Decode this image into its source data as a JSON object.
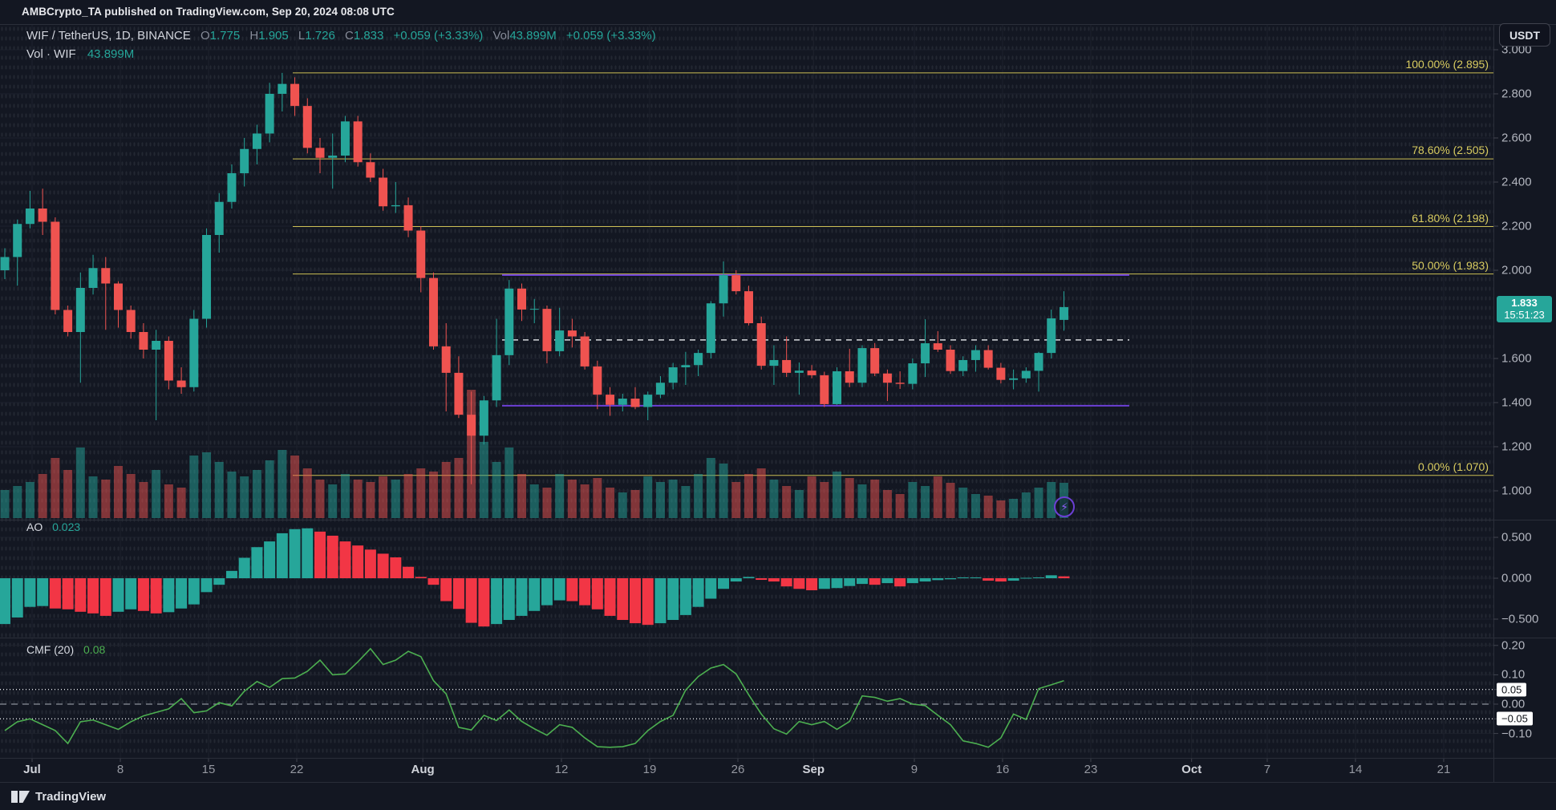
{
  "attribution": "AMBCrypto_TA published on TradingView.com, Sep 20, 2024 08:08 UTC",
  "toolbar": {
    "symbol_currency_button": "USDT"
  },
  "legend": {
    "symbol": "WIF / TetherUS, 1D, BINANCE",
    "o_label": "O",
    "o_value": "1.775",
    "h_label": "H",
    "h_value": "1.905",
    "l_label": "L",
    "l_value": "1.726",
    "c_label": "C",
    "c_value": "1.833",
    "change": "+0.059 (+3.33%)",
    "vol_label": "Vol",
    "vol_value": "43.899M",
    "vol_change": "+0.059 (+3.33%)",
    "row2_label": "Vol · WIF",
    "row2_value": "43.899M"
  },
  "panes": {
    "ao": {
      "label": "AO",
      "value": "0.023"
    },
    "cmf": {
      "label": "CMF (20)",
      "value": "0.08"
    }
  },
  "price_badge": {
    "price": "1.833",
    "countdown": "15:51:23"
  },
  "footer": {
    "brand": "TradingView"
  },
  "colors": {
    "up": "#26a69a",
    "down": "#ef5350",
    "ao_up": "#26a69a",
    "ao_down": "#f23645",
    "cmf_line": "#4caf50",
    "fib": "#d9cc60",
    "fib_line": "#cdbf55",
    "purple_line": "#6b3fd4",
    "dashed_line": "#d8dade",
    "grid": "#1e222d",
    "separator": "#2a2e39",
    "tick": "#40434e",
    "axis_text": "#b2b5be",
    "badge_bg": "#26a69a"
  },
  "chart_data": {
    "type": "candlestick",
    "title": "WIF / TetherUS, 1D, BINANCE",
    "legend_last": {
      "open": 1.775,
      "high": 1.905,
      "low": 1.726,
      "close": 1.833,
      "change": "+0.059 (+3.33%)",
      "volume": "43.899M"
    },
    "price_range_visible": [
      0.87,
      3.12
    ],
    "grid": "dotted",
    "candles": [
      [
        2.0,
        2.1,
        1.96,
        2.06
      ],
      [
        2.06,
        2.23,
        1.93,
        2.21
      ],
      [
        2.21,
        2.36,
        2.19,
        2.28
      ],
      [
        2.28,
        2.37,
        2.16,
        2.22
      ],
      [
        2.22,
        2.24,
        1.8,
        1.82
      ],
      [
        1.82,
        1.84,
        1.7,
        1.72
      ],
      [
        1.72,
        1.99,
        1.49,
        1.92
      ],
      [
        1.92,
        2.07,
        1.89,
        2.01
      ],
      [
        2.01,
        2.06,
        1.73,
        1.94
      ],
      [
        1.94,
        1.95,
        1.74,
        1.82
      ],
      [
        1.82,
        1.84,
        1.69,
        1.72
      ],
      [
        1.72,
        1.76,
        1.6,
        1.64
      ],
      [
        1.64,
        1.73,
        1.32,
        1.68
      ],
      [
        1.68,
        1.7,
        1.46,
        1.5
      ],
      [
        1.5,
        1.56,
        1.44,
        1.47
      ],
      [
        1.47,
        1.82,
        1.45,
        1.78
      ],
      [
        1.78,
        2.19,
        1.74,
        2.16
      ],
      [
        2.16,
        2.35,
        2.08,
        2.31
      ],
      [
        2.31,
        2.48,
        2.28,
        2.44
      ],
      [
        2.44,
        2.6,
        2.38,
        2.55
      ],
      [
        2.55,
        2.66,
        2.48,
        2.62
      ],
      [
        2.62,
        2.85,
        2.58,
        2.8
      ],
      [
        2.8,
        2.895,
        2.72,
        2.845
      ],
      [
        2.845,
        2.875,
        2.7,
        2.745
      ],
      [
        2.745,
        2.78,
        2.53,
        2.555
      ],
      [
        2.555,
        2.6,
        2.44,
        2.51
      ],
      [
        2.51,
        2.62,
        2.37,
        2.52
      ],
      [
        2.52,
        2.7,
        2.49,
        2.675
      ],
      [
        2.675,
        2.7,
        2.47,
        2.49
      ],
      [
        2.49,
        2.53,
        2.4,
        2.42
      ],
      [
        2.42,
        2.46,
        2.27,
        2.29
      ],
      [
        2.29,
        2.4,
        2.26,
        2.295
      ],
      [
        2.295,
        2.33,
        2.15,
        2.18
      ],
      [
        2.18,
        2.2,
        1.9,
        1.965
      ],
      [
        1.965,
        1.99,
        1.64,
        1.655
      ],
      [
        1.655,
        1.76,
        1.36,
        1.535
      ],
      [
        1.535,
        1.61,
        1.33,
        1.345
      ],
      [
        1.345,
        1.45,
        1.03,
        1.25
      ],
      [
        1.25,
        1.43,
        1.21,
        1.41
      ],
      [
        1.41,
        1.78,
        1.38,
        1.615
      ],
      [
        1.615,
        1.956,
        1.57,
        1.917
      ],
      [
        1.917,
        1.94,
        1.77,
        1.822
      ],
      [
        1.822,
        1.87,
        1.76,
        1.825
      ],
      [
        1.825,
        1.84,
        1.578,
        1.633
      ],
      [
        1.633,
        1.83,
        1.61,
        1.727
      ],
      [
        1.727,
        1.78,
        1.65,
        1.7
      ],
      [
        1.7,
        1.72,
        1.55,
        1.564
      ],
      [
        1.564,
        1.59,
        1.37,
        1.436
      ],
      [
        1.436,
        1.47,
        1.34,
        1.39
      ],
      [
        1.39,
        1.44,
        1.36,
        1.418
      ],
      [
        1.418,
        1.47,
        1.37,
        1.38
      ],
      [
        1.38,
        1.45,
        1.32,
        1.436
      ],
      [
        1.436,
        1.52,
        1.42,
        1.49
      ],
      [
        1.49,
        1.58,
        1.46,
        1.56
      ],
      [
        1.56,
        1.63,
        1.48,
        1.57
      ],
      [
        1.57,
        1.64,
        1.52,
        1.625
      ],
      [
        1.625,
        1.86,
        1.6,
        1.85
      ],
      [
        1.85,
        2.04,
        1.79,
        1.978
      ],
      [
        1.978,
        2.0,
        1.89,
        1.905
      ],
      [
        1.905,
        1.93,
        1.75,
        1.76
      ],
      [
        1.76,
        1.79,
        1.55,
        1.567
      ],
      [
        1.567,
        1.66,
        1.48,
        1.593
      ],
      [
        1.593,
        1.7,
        1.516,
        1.535
      ],
      [
        1.535,
        1.582,
        1.436,
        1.545
      ],
      [
        1.545,
        1.57,
        1.51,
        1.524
      ],
      [
        1.524,
        1.54,
        1.38,
        1.393
      ],
      [
        1.393,
        1.56,
        1.39,
        1.542
      ],
      [
        1.542,
        1.644,
        1.47,
        1.49
      ],
      [
        1.49,
        1.66,
        1.47,
        1.647
      ],
      [
        1.647,
        1.67,
        1.52,
        1.532
      ],
      [
        1.532,
        1.55,
        1.407,
        1.49
      ],
      [
        1.49,
        1.542,
        1.462,
        1.485
      ],
      [
        1.485,
        1.6,
        1.46,
        1.578
      ],
      [
        1.578,
        1.778,
        1.516,
        1.669
      ],
      [
        1.669,
        1.724,
        1.63,
        1.64
      ],
      [
        1.64,
        1.66,
        1.53,
        1.543
      ],
      [
        1.543,
        1.61,
        1.52,
        1.593
      ],
      [
        1.593,
        1.66,
        1.54,
        1.638
      ],
      [
        1.638,
        1.66,
        1.55,
        1.558
      ],
      [
        1.558,
        1.58,
        1.487,
        1.503
      ],
      [
        1.503,
        1.55,
        1.46,
        1.51
      ],
      [
        1.51,
        1.56,
        1.49,
        1.544
      ],
      [
        1.544,
        1.63,
        1.45,
        1.625
      ],
      [
        1.625,
        1.822,
        1.6,
        1.782
      ],
      [
        1.775,
        1.905,
        1.726,
        1.833
      ]
    ],
    "volume_m": [
      35,
      40,
      45,
      55,
      75,
      60,
      88,
      52,
      48,
      65,
      55,
      45,
      60,
      42,
      38,
      78,
      82,
      70,
      58,
      52,
      60,
      72,
      85,
      78,
      62,
      48,
      42,
      55,
      48,
      45,
      52,
      48,
      55,
      62,
      58,
      70,
      75,
      160,
      95,
      70,
      88,
      55,
      42,
      38,
      55,
      48,
      42,
      50,
      38,
      32,
      35,
      52,
      45,
      48,
      40,
      55,
      75,
      68,
      45,
      55,
      62,
      48,
      40,
      35,
      52,
      45,
      58,
      50,
      42,
      48,
      35,
      30,
      45,
      40,
      52,
      44,
      38,
      30,
      28,
      22,
      24,
      32,
      38,
      45,
      44
    ],
    "ao": [
      -0.56,
      -0.48,
      -0.35,
      -0.34,
      -0.37,
      -0.38,
      -0.41,
      -0.43,
      -0.46,
      -0.41,
      -0.38,
      -0.4,
      -0.43,
      -0.415,
      -0.37,
      -0.32,
      -0.17,
      -0.08,
      0.09,
      0.25,
      0.38,
      0.45,
      0.55,
      0.6,
      0.61,
      0.57,
      0.52,
      0.45,
      0.4,
      0.35,
      0.3,
      0.255,
      0.14,
      0.016,
      -0.08,
      -0.28,
      -0.375,
      -0.545,
      -0.59,
      -0.56,
      -0.51,
      -0.46,
      -0.4,
      -0.33,
      -0.27,
      -0.28,
      -0.33,
      -0.38,
      -0.46,
      -0.51,
      -0.55,
      -0.57,
      -0.55,
      -0.51,
      -0.45,
      -0.35,
      -0.25,
      -0.13,
      -0.04,
      0.016,
      -0.02,
      -0.04,
      -0.1,
      -0.13,
      -0.147,
      -0.13,
      -0.12,
      -0.095,
      -0.07,
      -0.08,
      -0.06,
      -0.1,
      -0.06,
      -0.04,
      -0.023,
      -0.013,
      0.01,
      0.01,
      -0.03,
      -0.04,
      -0.03,
      0.005,
      0.01,
      0.036,
      0.023
    ],
    "cmf": [
      -0.09,
      -0.06,
      -0.05,
      -0.07,
      -0.09,
      -0.134,
      -0.06,
      -0.054,
      -0.07,
      -0.086,
      -0.06,
      -0.04,
      -0.028,
      -0.016,
      0.019,
      -0.029,
      -0.023,
      0.005,
      -0.006,
      0.044,
      0.077,
      0.057,
      0.087,
      0.089,
      0.112,
      0.15,
      0.1,
      0.103,
      0.144,
      0.189,
      0.135,
      0.15,
      0.18,
      0.162,
      0.08,
      0.035,
      -0.079,
      -0.088,
      -0.038,
      -0.056,
      -0.02,
      -0.059,
      -0.084,
      -0.106,
      -0.07,
      -0.079,
      -0.115,
      -0.145,
      -0.147,
      -0.145,
      -0.134,
      -0.09,
      -0.059,
      -0.038,
      0.048,
      0.094,
      0.123,
      0.135,
      0.103,
      0.032,
      -0.034,
      -0.084,
      -0.102,
      -0.059,
      -0.07,
      -0.059,
      -0.086,
      -0.059,
      0.028,
      0.023,
      0.01,
      0.019,
      0.0,
      -0.005,
      -0.038,
      -0.07,
      -0.125,
      -0.134,
      -0.147,
      -0.115,
      -0.034,
      -0.052,
      0.053,
      0.066,
      0.08
    ],
    "fib_levels": [
      {
        "label": "100.00% (2.895)",
        "price": 2.895
      },
      {
        "label": "78.60% (2.505)",
        "price": 2.505
      },
      {
        "label": "61.80% (2.198)",
        "price": 2.198
      },
      {
        "label": "50.00% (1.983)",
        "price": 1.983
      },
      {
        "label": "0.00% (1.070)",
        "price": 1.07
      }
    ],
    "horizontal_rays_purple": [
      {
        "price": 1.978
      },
      {
        "price": 1.386
      }
    ],
    "dashed_level": {
      "price": 1.684
    },
    "price_axis": [
      {
        "label": "3.000",
        "v": 3.0
      },
      {
        "label": "2.800",
        "v": 2.8
      },
      {
        "label": "2.600",
        "v": 2.6
      },
      {
        "label": "2.400",
        "v": 2.4
      },
      {
        "label": "2.200",
        "v": 2.2
      },
      {
        "label": "2.000",
        "v": 2.0
      },
      {
        "label": "1.600",
        "v": 1.6
      },
      {
        "label": "1.400",
        "v": 1.4
      },
      {
        "label": "1.200",
        "v": 1.2
      },
      {
        "label": "1.000",
        "v": 1.0
      }
    ],
    "ao_axis": [
      {
        "label": "0.500",
        "v": 0.5
      },
      {
        "label": "0.000",
        "v": 0.0
      },
      {
        "label": "−0.500",
        "v": -0.5
      }
    ],
    "cmf_axis": [
      {
        "label": "0.20",
        "v": 0.2
      },
      {
        "label": "0.10",
        "v": 0.1
      },
      {
        "label": "0.05",
        "v": 0.05,
        "badge": true
      },
      {
        "label": "0.00",
        "v": 0.0
      },
      {
        "label": "−0.05",
        "v": -0.05,
        "badge": true
      },
      {
        "label": "−0.10",
        "v": -0.1
      }
    ],
    "time_axis": [
      {
        "label": "Jul",
        "days": 0,
        "major": true
      },
      {
        "label": "8",
        "days": 7,
        "major": false
      },
      {
        "label": "15",
        "days": 14,
        "major": false
      },
      {
        "label": "22",
        "days": 21,
        "major": false
      },
      {
        "label": "Aug",
        "days": 31,
        "major": true
      },
      {
        "label": "12",
        "days": 42,
        "major": false
      },
      {
        "label": "19",
        "days": 49,
        "major": false
      },
      {
        "label": "26",
        "days": 56,
        "major": false
      },
      {
        "label": "Sep",
        "days": 62,
        "major": true
      },
      {
        "label": "9",
        "days": 70,
        "major": false
      },
      {
        "label": "16",
        "days": 77,
        "major": false
      },
      {
        "label": "23",
        "days": 84,
        "major": false
      },
      {
        "label": "Oct",
        "days": 92,
        "major": true
      },
      {
        "label": "7",
        "days": 98,
        "major": false
      },
      {
        "label": "14",
        "days": 105,
        "major": false
      },
      {
        "label": "21",
        "days": 112,
        "major": false
      }
    ]
  }
}
